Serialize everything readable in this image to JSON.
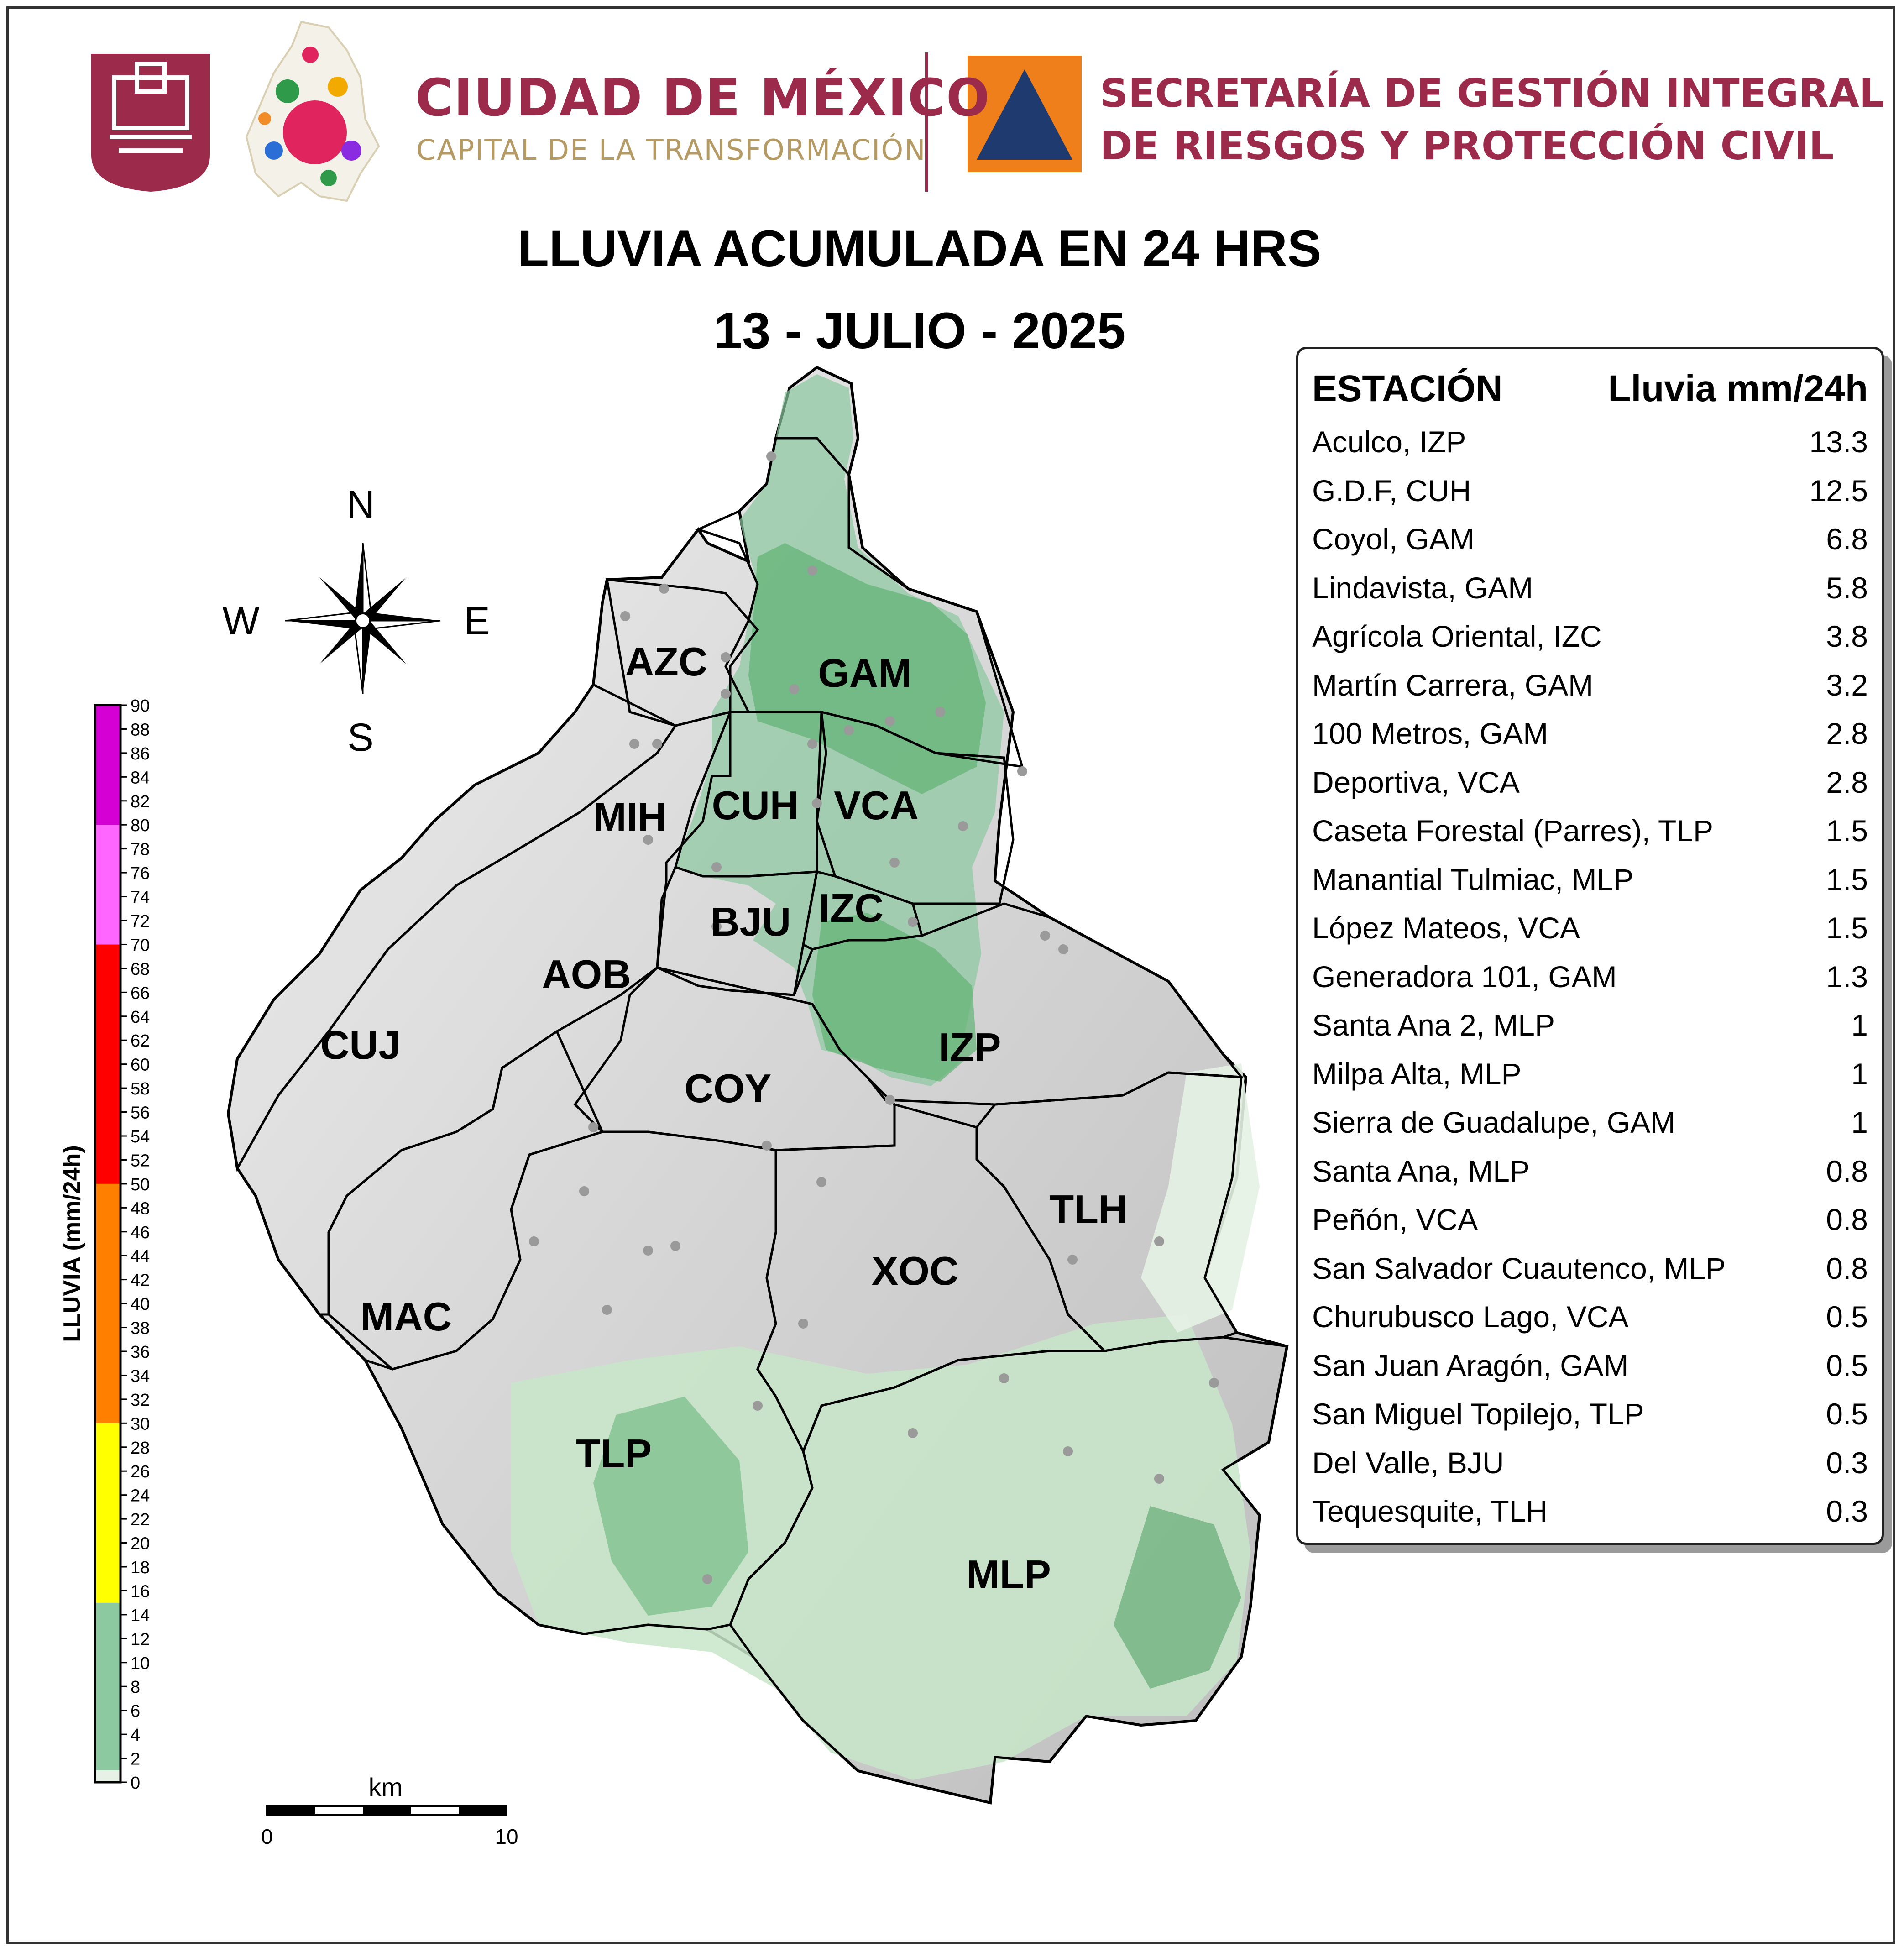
{
  "header": {
    "city_name": "CIUDAD DE MÉXICO",
    "city_slogan": "CAPITAL DE LA TRANSFORMACIÓN",
    "agency_line1": "SECRETARÍA DE GESTIÓN INTEGRAL",
    "agency_line2": "DE RIESGOS Y PROTECCIÓN CIVIL"
  },
  "title": {
    "line1": "LLUVIA ACUMULADA EN 24 HRS",
    "line2": "13 - JULIO - 2025"
  },
  "compass": {
    "n": "N",
    "s": "S",
    "e": "E",
    "w": "W"
  },
  "scale_bar": {
    "unit": "km",
    "start": "0",
    "end": "10"
  },
  "legend": {
    "label": "LLUVIA (mm/24h)",
    "ticks": [
      "0",
      "2",
      "4",
      "6",
      "8",
      "10",
      "12",
      "14",
      "16",
      "18",
      "20",
      "22",
      "24",
      "26",
      "28",
      "30",
      "32",
      "34",
      "36",
      "38",
      "40",
      "42",
      "44",
      "46",
      "48",
      "50",
      "52",
      "54",
      "56",
      "58",
      "60",
      "62",
      "64",
      "66",
      "68",
      "70",
      "72",
      "74",
      "76",
      "78",
      "80",
      "82",
      "84",
      "86",
      "88",
      "90"
    ],
    "bands": [
      {
        "from": 0,
        "to": 1,
        "color": "#e6f2e6"
      },
      {
        "from": 1,
        "to": 15,
        "color": "#8cc8a0"
      },
      {
        "from": 15,
        "to": 30,
        "color": "#ffff00"
      },
      {
        "from": 30,
        "to": 50,
        "color": "#ff7f00"
      },
      {
        "from": 50,
        "to": 70,
        "color": "#ff0000"
      },
      {
        "from": 70,
        "to": 80,
        "color": "#ff66ff"
      },
      {
        "from": 80,
        "to": 90,
        "color": "#d400d4"
      }
    ]
  },
  "boroughs": [
    {
      "code": "AZC"
    },
    {
      "code": "GAM"
    },
    {
      "code": "MIH"
    },
    {
      "code": "CUH"
    },
    {
      "code": "VCA"
    },
    {
      "code": "BJU"
    },
    {
      "code": "IZC"
    },
    {
      "code": "AOB"
    },
    {
      "code": "CUJ"
    },
    {
      "code": "IZP"
    },
    {
      "code": "COY"
    },
    {
      "code": "TLH"
    },
    {
      "code": "XOC"
    },
    {
      "code": "MAC"
    },
    {
      "code": "TLP"
    },
    {
      "code": "MLP"
    }
  ],
  "stations_table": {
    "col_station": "ESTACIÓN",
    "col_rain": "Lluvia mm/24h",
    "rows": [
      {
        "station": "Aculco, IZP",
        "rain": "13.3"
      },
      {
        "station": "G.D.F, CUH",
        "rain": "12.5"
      },
      {
        "station": "Coyol, GAM",
        "rain": "6.8"
      },
      {
        "station": "Lindavista, GAM",
        "rain": "5.8"
      },
      {
        "station": "Agrícola Oriental, IZC",
        "rain": "3.8"
      },
      {
        "station": "Martín Carrera, GAM",
        "rain": "3.2"
      },
      {
        "station": "100 Metros, GAM",
        "rain": "2.8"
      },
      {
        "station": "Deportiva, VCA",
        "rain": "2.8"
      },
      {
        "station": "Caseta Forestal (Parres), TLP",
        "rain": "1.5"
      },
      {
        "station": "Manantial Tulmiac, MLP",
        "rain": "1.5"
      },
      {
        "station": "López Mateos, VCA",
        "rain": "1.5"
      },
      {
        "station": "Generadora 101, GAM",
        "rain": "1.3"
      },
      {
        "station": "Santa Ana 2, MLP",
        "rain": "1"
      },
      {
        "station": "Milpa Alta, MLP",
        "rain": "1"
      },
      {
        "station": "Sierra de Guadalupe, GAM",
        "rain": "1"
      },
      {
        "station": "Santa Ana, MLP",
        "rain": "0.8"
      },
      {
        "station": "Peñón, VCA",
        "rain": "0.8"
      },
      {
        "station": "San Salvador Cuautenco, MLP",
        "rain": "0.8"
      },
      {
        "station": "Churubusco Lago, VCA",
        "rain": "0.5"
      },
      {
        "station": "San Juan Aragón, GAM",
        "rain": "0.5"
      },
      {
        "station": "San Miguel Topilejo, TLP",
        "rain": "0.5"
      },
      {
        "station": "Del Valle, BJU",
        "rain": "0.3"
      },
      {
        "station": "Tequesquite, TLH",
        "rain": "0.3"
      }
    ]
  },
  "colors": {
    "brand_maroon": "#9b2a4b",
    "brand_gold": "#b69a63",
    "pc_orange": "#ef7f1a",
    "pc_navy": "#1f3a6e",
    "terrain_gray": "#d6d6d6",
    "rain_light_green": "#c8e6c9",
    "rain_green": "#5fb274",
    "rain_dark_green": "#2f8f46"
  }
}
